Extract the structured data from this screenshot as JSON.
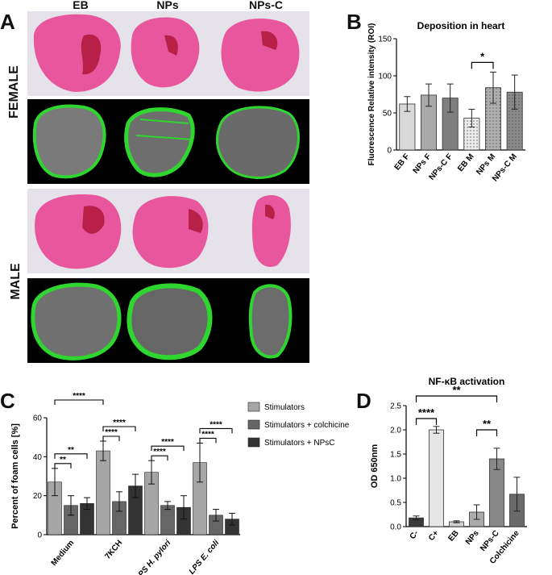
{
  "panels": {
    "A": {
      "letter": "A",
      "columns": [
        "EB",
        "NPs",
        "NPs-C"
      ],
      "rows": [
        "FEMALE",
        "MALE"
      ]
    },
    "B": {
      "letter": "B"
    },
    "C": {
      "letter": "C"
    },
    "D": {
      "letter": "D"
    }
  },
  "colors": {
    "he_tissue": "#e8579e",
    "he_dark": "#b82048",
    "he_background": "#e6e2ea",
    "fluor_tissue": "#7a7a7a",
    "fluor_green": "#2fd62f"
  },
  "chart_data": [
    {
      "id": "B",
      "type": "bar",
      "title": "Deposition in heart",
      "xlabel": "",
      "ylabel": "Fluorescence Relative intensity (ROI)",
      "ylim": [
        0,
        150
      ],
      "yticks": [
        0,
        50,
        100,
        150
      ],
      "categories": [
        "EB F",
        "NPs F",
        "NPs-C F",
        "EB M",
        "NPs M",
        "NPs-C M"
      ],
      "values": [
        62,
        74,
        70,
        43,
        84,
        78
      ],
      "errors": [
        10,
        15,
        19,
        12,
        21,
        23
      ],
      "colors": [
        "#d9d9d9",
        "#a9a9a9",
        "#7f7f7f",
        "#ececec",
        "#b0b0b0",
        "#8a8a8a"
      ],
      "dotted": [
        false,
        false,
        false,
        true,
        true,
        true
      ],
      "significance": [
        {
          "from": 3,
          "to": 4,
          "label": "*"
        }
      ]
    },
    {
      "id": "C",
      "type": "bar",
      "title": "",
      "xlabel": "",
      "ylabel": "Percent of foam cells [%]",
      "ylim": [
        0,
        60
      ],
      "yticks": [
        0,
        20,
        40,
        60
      ],
      "categories": [
        "Medium",
        "7KCH",
        "LPS H. pylori",
        "LPS E. coli"
      ],
      "series": [
        {
          "name": "Stimulators",
          "color": "#a6a6a6",
          "values": [
            27,
            43,
            32,
            37
          ],
          "errors": [
            7,
            5,
            6,
            10
          ]
        },
        {
          "name": "Stimulators + colchicine",
          "color": "#666666",
          "values": [
            15,
            17,
            15,
            10
          ],
          "errors": [
            5,
            5,
            2,
            3
          ]
        },
        {
          "name": "Stimulators + NPsC",
          "color": "#333333",
          "values": [
            16,
            25,
            14,
            8
          ],
          "errors": [
            3,
            6,
            6,
            3
          ]
        }
      ],
      "significance": [
        {
          "group": 0,
          "from": 0,
          "to": 1,
          "label": "**"
        },
        {
          "group": 0,
          "from": 0,
          "to": 2,
          "label": "**"
        },
        {
          "group": 1,
          "from": 0,
          "to": 1,
          "label": "****"
        },
        {
          "group": 1,
          "from": 0,
          "to": 2,
          "label": "****"
        },
        {
          "group": 2,
          "from": 0,
          "to": 1,
          "label": "****"
        },
        {
          "group": 2,
          "from": 0,
          "to": 2,
          "label": "****"
        },
        {
          "group": 3,
          "from": 0,
          "to": 1,
          "label": "****"
        },
        {
          "group": 3,
          "from": 0,
          "to": 2,
          "label": "****"
        },
        {
          "cross": true,
          "fromGroup": 0,
          "toGroup": 1,
          "label": "****"
        }
      ],
      "legend_position": "top-right"
    },
    {
      "id": "D",
      "type": "bar",
      "title": "NF-κB activation",
      "xlabel": "",
      "ylabel": "OD 650nm",
      "ylim": [
        0,
        2.5
      ],
      "yticks": [
        0.0,
        0.5,
        1.0,
        1.5,
        2.0,
        2.5
      ],
      "categories": [
        "C-",
        "C+",
        "EB",
        "NPs",
        "NPs-C",
        "Colchicine"
      ],
      "values": [
        0.18,
        2.0,
        0.1,
        0.3,
        1.4,
        0.67
      ],
      "errors": [
        0.04,
        0.07,
        0.02,
        0.15,
        0.22,
        0.35
      ],
      "colors": [
        "#3a3a3a",
        "#e6e6e6",
        "#d0d0d0",
        "#aaaaaa",
        "#888888",
        "#6a6a6a"
      ],
      "significance": [
        {
          "from": 0,
          "to": 1,
          "label": "****"
        },
        {
          "from": 3,
          "to": 4,
          "label": "**"
        },
        {
          "from": 0,
          "to": 4,
          "label": "**"
        }
      ]
    }
  ]
}
